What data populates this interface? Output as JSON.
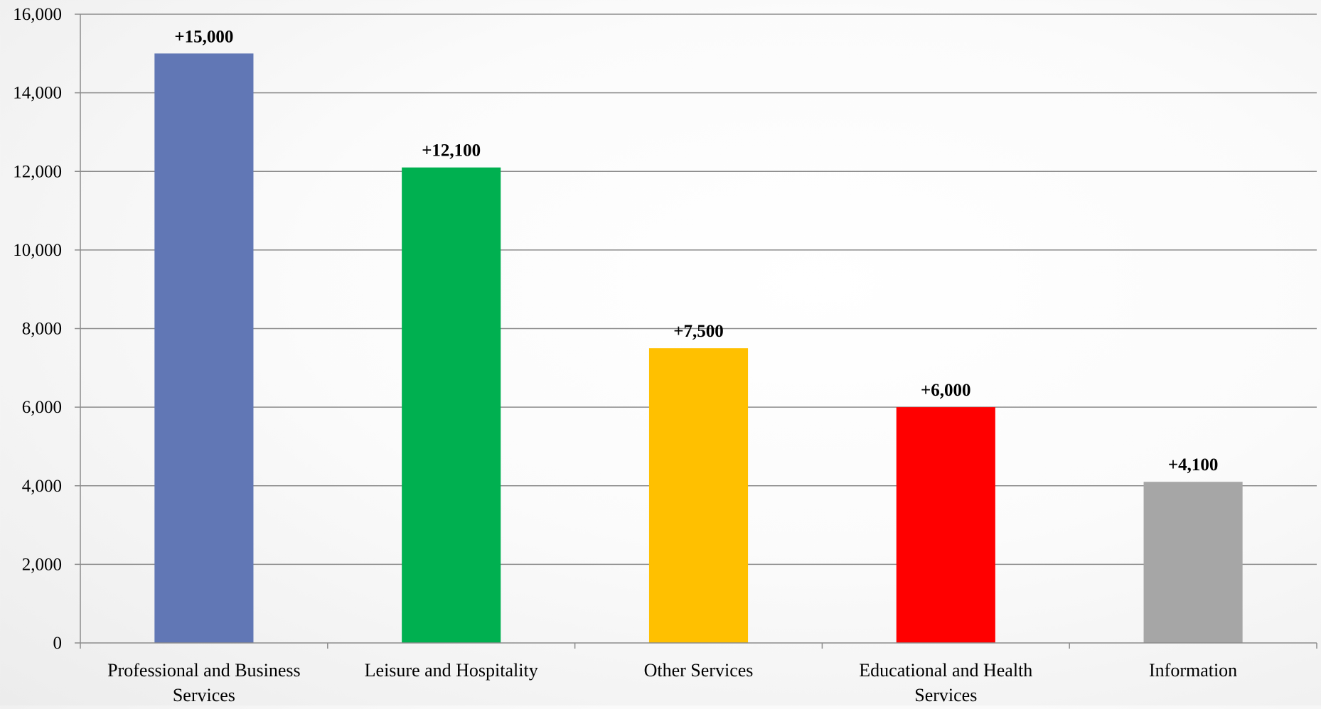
{
  "chart_data": {
    "type": "bar",
    "title": "",
    "xlabel": "",
    "ylabel": "",
    "ylim": [
      0,
      16000
    ],
    "yticks": [
      0,
      2000,
      4000,
      6000,
      8000,
      10000,
      12000,
      14000,
      16000
    ],
    "ytick_labels": [
      "0",
      "2,000",
      "4,000",
      "6,000",
      "8,000",
      "10,000",
      "12,000",
      "14,000",
      "16,000"
    ],
    "categories": [
      "Professional and Business Services",
      "Leisure and Hospitality",
      "Other Services",
      "Educational and Health Services",
      "Information"
    ],
    "category_lines": [
      [
        "Professional and Business",
        "Services"
      ],
      [
        "Leisure and Hospitality"
      ],
      [
        "Other Services"
      ],
      [
        "Educational and Health",
        "Services"
      ],
      [
        "Information"
      ]
    ],
    "values": [
      15000,
      12100,
      7500,
      6000,
      4100
    ],
    "data_labels": [
      "+15,000",
      "+12,100",
      "+7,500",
      "+6,000",
      "+4,100"
    ],
    "bar_colors": [
      "#6177b5",
      "#00b050",
      "#ffc000",
      "#ff0000",
      "#a6a6a6"
    ],
    "grid": true,
    "legend": "none"
  }
}
